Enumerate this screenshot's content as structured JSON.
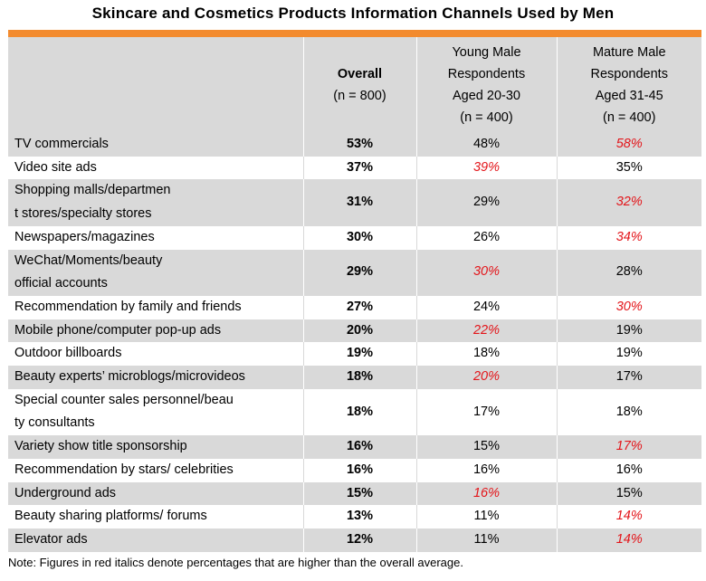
{
  "title": "Skincare and Cosmetics Products Information Channels Used by Men",
  "headers": {
    "overall": {
      "label": "Overall",
      "n": "(n = 800)"
    },
    "young": {
      "line1": "Young Male",
      "line2": "Respondents",
      "line3": "Aged 20-30",
      "n": "(n = 400)"
    },
    "mature": {
      "line1": "Mature Male",
      "line2": "Respondents",
      "line3": "Aged 31-45",
      "n": "(n = 400)"
    }
  },
  "rows": [
    {
      "channel": "TV commercials",
      "overall": "53%",
      "young": "48%",
      "mature": "58%",
      "young_high": false,
      "mature_high": true
    },
    {
      "channel": "Video site ads",
      "overall": "37%",
      "young": "39%",
      "mature": "35%",
      "young_high": true,
      "mature_high": false
    },
    {
      "channel": "Shopping malls/department stores/specialty stores",
      "overall": "31%",
      "young": "29%",
      "mature": "32%",
      "young_high": false,
      "mature_high": true
    },
    {
      "channel": "Newspapers/magazines",
      "overall": "30%",
      "young": "26%",
      "mature": "34%",
      "young_high": false,
      "mature_high": true
    },
    {
      "channel": "WeChat/Moments/beauty  official accounts",
      "overall": "29%",
      "young": "30%",
      "mature": "28%",
      "young_high": true,
      "mature_high": false
    },
    {
      "channel": "Recommendation  by family and friends",
      "overall": "27%",
      "young": "24%",
      "mature": "30%",
      "young_high": false,
      "mature_high": true
    },
    {
      "channel": "Mobile phone/computer  pop-up ads",
      "overall": "20%",
      "young": "22%",
      "mature": "19%",
      "young_high": true,
      "mature_high": false
    },
    {
      "channel": "Outdoor billboards",
      "overall": "19%",
      "young": "18%",
      "mature": "19%",
      "young_high": false,
      "mature_high": false
    },
    {
      "channel": "Beauty experts’ microblogs/microvideos",
      "overall": "18%",
      "young": "20%",
      "mature": "17%",
      "young_high": true,
      "mature_high": false
    },
    {
      "channel": "Special counter sales personnel/beauty consultants",
      "overall": "18%",
      "young": "17%",
      "mature": "18%",
      "young_high": false,
      "mature_high": false
    },
    {
      "channel": "Variety show title sponsorship",
      "overall": "16%",
      "young": "15%",
      "mature": "17%",
      "young_high": false,
      "mature_high": true
    },
    {
      "channel": "Recommendation  by stars/ celebrities",
      "overall": "16%",
      "young": "16%",
      "mature": "16%",
      "young_high": false,
      "mature_high": false
    },
    {
      "channel": "Underground  ads",
      "overall": "15%",
      "young": "16%",
      "mature": "15%",
      "young_high": true,
      "mature_high": false
    },
    {
      "channel": "Beauty sharing platforms/ forums",
      "overall": "13%",
      "young": "11%",
      "mature": "14%",
      "young_high": false,
      "mature_high": true
    },
    {
      "channel": "Elevator ads",
      "overall": "12%",
      "young": "11%",
      "mature": "14%",
      "young_high": false,
      "mature_high": true
    }
  ],
  "note": "Note: Figures in red italics denote percentages that are higher than the overall average.",
  "colors": {
    "accent": "#f38b2e",
    "shade": "#d9d9d9",
    "highlight": "#e3151a"
  }
}
